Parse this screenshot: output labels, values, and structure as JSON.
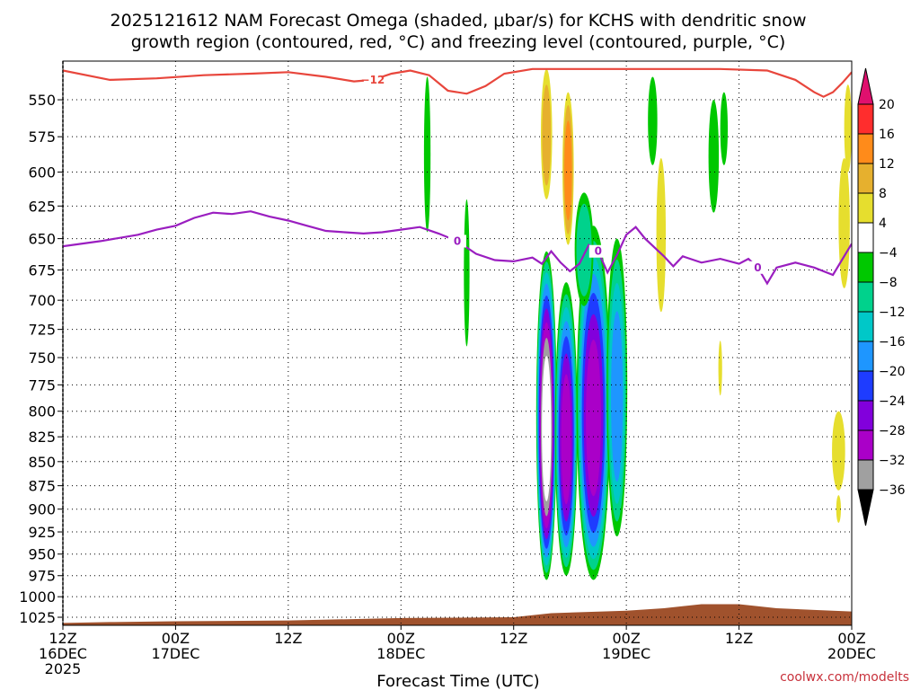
{
  "chart_data": {
    "type": "heatmap",
    "title_line1": "2025121612 NAM Forecast Omega (shaded, μbar/s) for KCHS with dendritic snow",
    "title_line2": "growth region (contoured, red, °C) and freezing level (contoured, purple, °C)",
    "xlabel": "Forecast Time (UTC)",
    "credit": "coolwx.com/modelts",
    "x_ticks": [
      {
        "hour": 0,
        "line1": "12Z",
        "line2": "16DEC",
        "line3": "2025"
      },
      {
        "hour": 12,
        "line1": "00Z",
        "line2": "17DEC",
        "line3": ""
      },
      {
        "hour": 24,
        "line1": "12Z",
        "line2": "",
        "line3": ""
      },
      {
        "hour": 36,
        "line1": "00Z",
        "line2": "18DEC",
        "line3": ""
      },
      {
        "hour": 48,
        "line1": "12Z",
        "line2": "",
        "line3": ""
      },
      {
        "hour": 60,
        "line1": "00Z",
        "line2": "19DEC",
        "line3": ""
      },
      {
        "hour": 72,
        "line1": "12Z",
        "line2": "",
        "line3": ""
      },
      {
        "hour": 84,
        "line1": "00Z",
        "line2": "20DEC",
        "line3": ""
      }
    ],
    "x_range": [
      0,
      84
    ],
    "y_ticks": [
      550,
      575,
      600,
      625,
      650,
      675,
      700,
      725,
      750,
      775,
      800,
      825,
      850,
      875,
      900,
      925,
      950,
      975,
      1000,
      1025
    ],
    "y_range": [
      525,
      1035
    ],
    "y_log_scale": true,
    "grid": true,
    "colorbar": {
      "levels": [
        -36,
        -32,
        -28,
        -24,
        -20,
        -16,
        -12,
        -8,
        -4,
        4,
        8,
        12,
        16,
        20
      ],
      "labels": [
        "20",
        "16",
        "12",
        "8",
        "4",
        "−4",
        "−8",
        "−12",
        "−16",
        "−20",
        "−24",
        "−28",
        "−32",
        "−36"
      ],
      "colors_top_to_bottom": [
        "#ff2d2d",
        "#ff8b1a",
        "#e6b02e",
        "#e6de2e",
        "#ffffff",
        "#00c800",
        "#00d28c",
        "#00c8c8",
        "#1e96ff",
        "#1e3cff",
        "#8200dc",
        "#aa00c8",
        "#a0a0a0"
      ],
      "top_arrow_color": "#e0106e",
      "bottom_arrow_color": "#000000"
    },
    "contours": [
      {
        "name": "dendritic",
        "label": "−12",
        "color": "#e8463c",
        "points": [
          [
            0,
            531
          ],
          [
            5,
            537
          ],
          [
            10,
            536
          ],
          [
            15,
            534
          ],
          [
            20,
            533
          ],
          [
            24,
            532
          ],
          [
            28,
            535
          ],
          [
            31,
            538
          ],
          [
            33,
            537
          ],
          [
            35,
            533
          ],
          [
            37,
            531
          ],
          [
            39,
            534
          ],
          [
            41,
            544
          ],
          [
            43,
            546
          ],
          [
            45,
            541
          ],
          [
            47,
            533
          ],
          [
            50,
            530
          ],
          [
            55,
            530
          ],
          [
            60,
            530
          ],
          [
            65,
            530
          ],
          [
            70,
            530
          ],
          [
            75,
            531
          ],
          [
            78,
            537
          ],
          [
            80,
            545
          ],
          [
            81,
            548
          ],
          [
            82,
            545
          ],
          [
            83,
            539
          ],
          [
            84,
            532
          ]
        ]
      },
      {
        "name": "freezing",
        "label": "0",
        "color": "#9a1ec0",
        "points": [
          [
            0,
            656
          ],
          [
            4,
            652
          ],
          [
            8,
            647
          ],
          [
            10,
            643
          ],
          [
            12,
            640
          ],
          [
            14,
            634
          ],
          [
            16,
            630
          ],
          [
            18,
            631
          ],
          [
            20,
            629
          ],
          [
            22,
            633
          ],
          [
            24,
            636
          ],
          [
            26,
            640
          ],
          [
            28,
            644
          ],
          [
            30,
            645
          ],
          [
            32,
            646
          ],
          [
            34,
            645
          ],
          [
            36,
            643
          ],
          [
            38,
            641
          ],
          [
            40,
            646
          ],
          [
            42,
            652
          ],
          [
            44,
            662
          ],
          [
            46,
            667
          ],
          [
            48,
            668
          ],
          [
            50,
            665
          ],
          [
            51,
            670
          ],
          [
            52,
            660
          ],
          [
            53,
            669
          ],
          [
            54,
            676
          ],
          [
            55,
            670
          ],
          [
            56,
            655
          ],
          [
            57,
            660
          ],
          [
            58,
            677
          ],
          [
            59,
            663
          ],
          [
            60,
            647
          ],
          [
            61,
            641
          ],
          [
            62,
            650
          ],
          [
            64,
            664
          ],
          [
            65,
            672
          ],
          [
            66,
            664
          ],
          [
            68,
            669
          ],
          [
            70,
            666
          ],
          [
            72,
            670
          ],
          [
            73,
            666
          ],
          [
            74,
            673
          ],
          [
            75,
            686
          ],
          [
            76,
            673
          ],
          [
            78,
            669
          ],
          [
            80,
            673
          ],
          [
            82,
            679
          ],
          [
            84,
            654
          ]
        ]
      }
    ],
    "omega_cells": [
      {
        "h": 51.5,
        "p": 820,
        "hw": 1.1,
        "ph": 160,
        "v": -40
      },
      {
        "h": 53.6,
        "p": 830,
        "hw": 1.2,
        "ph": 145,
        "v": -30
      },
      {
        "h": 56.5,
        "p": 810,
        "hw": 1.8,
        "ph": 170,
        "v": -30
      },
      {
        "h": 59.0,
        "p": 790,
        "hw": 1.1,
        "ph": 140,
        "v": -18
      },
      {
        "h": 55.5,
        "p": 660,
        "hw": 1.0,
        "ph": 45,
        "v": -12
      },
      {
        "h": 51.5,
        "p": 575,
        "hw": 0.6,
        "ph": 45,
        "v": 10
      },
      {
        "h": 53.8,
        "p": 600,
        "hw": 0.6,
        "ph": 55,
        "v": 14
      },
      {
        "h": 38.8,
        "p": 590,
        "hw": 0.35,
        "ph": 55,
        "v": -6
      },
      {
        "h": 43.0,
        "p": 680,
        "hw": 0.3,
        "ph": 60,
        "v": -6
      },
      {
        "h": 62.8,
        "p": 565,
        "hw": 0.5,
        "ph": 30,
        "v": -6
      },
      {
        "h": 69.3,
        "p": 590,
        "hw": 0.55,
        "ph": 40,
        "v": -6
      },
      {
        "h": 70.4,
        "p": 570,
        "hw": 0.4,
        "ph": 25,
        "v": -6
      },
      {
        "h": 63.7,
        "p": 650,
        "hw": 0.5,
        "ph": 60,
        "v": 6
      },
      {
        "h": 70.0,
        "p": 760,
        "hw": 0.2,
        "ph": 25,
        "v": 6
      },
      {
        "h": 82.6,
        "p": 840,
        "hw": 0.7,
        "ph": 40,
        "v": 6
      },
      {
        "h": 83.2,
        "p": 640,
        "hw": 0.6,
        "ph": 50,
        "v": 6
      },
      {
        "h": 83.6,
        "p": 570,
        "hw": 0.4,
        "ph": 30,
        "v": 8
      },
      {
        "h": 82.6,
        "p": 900,
        "hw": 0.25,
        "ph": 15,
        "v": 6
      }
    ],
    "terrain": {
      "color": "#a0522d",
      "surface": [
        [
          0,
          1032
        ],
        [
          5,
          1031
        ],
        [
          12,
          1030
        ],
        [
          24,
          1029
        ],
        [
          36,
          1026
        ],
        [
          48,
          1025
        ],
        [
          52,
          1020
        ],
        [
          60,
          1017
        ],
        [
          64,
          1014
        ],
        [
          68,
          1009
        ],
        [
          72,
          1009
        ],
        [
          76,
          1014
        ],
        [
          80,
          1016
        ],
        [
          84,
          1018
        ]
      ]
    }
  }
}
